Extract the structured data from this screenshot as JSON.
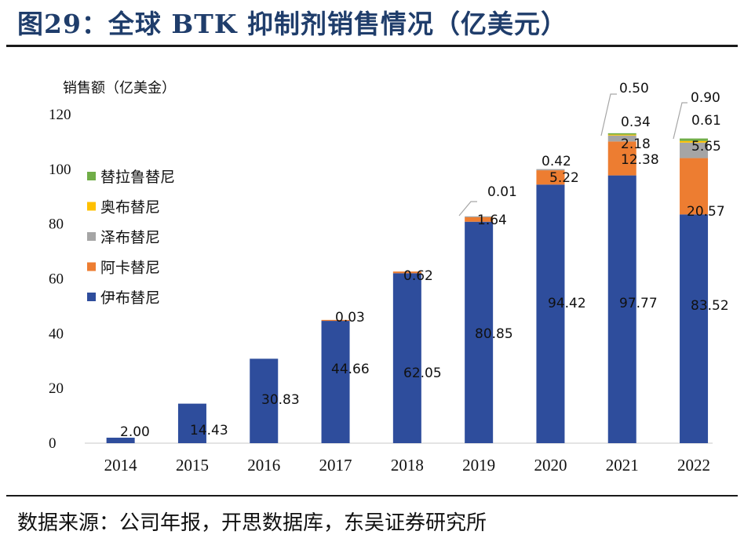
{
  "title": "图29：全球 BTK 抑制剂销售情况（亿美元）",
  "source": "数据来源：公司年报，开思数据库，东吴证券研究所",
  "chart_data": {
    "type": "bar",
    "stacked": true,
    "ylabel": "销售额（亿美金）",
    "xlabel": "",
    "ylim": [
      0,
      120
    ],
    "yticks": [
      0,
      20,
      40,
      60,
      80,
      100,
      120
    ],
    "categories": [
      "2014",
      "2015",
      "2016",
      "2017",
      "2018",
      "2019",
      "2020",
      "2021",
      "2022"
    ],
    "series": [
      {
        "name": "伊布替尼",
        "color": "#2e4d9c",
        "values": [
          2.0,
          14.43,
          30.83,
          44.66,
          62.05,
          80.85,
          94.42,
          97.77,
          83.52
        ],
        "labels": [
          "2.00",
          "14.43",
          "30.83",
          "44.66",
          "62.05",
          "80.85",
          "94.42",
          "97.77",
          "83.52"
        ]
      },
      {
        "name": "阿卡替尼",
        "color": "#ed7d31",
        "values": [
          0,
          0,
          0,
          0.03,
          0.62,
          1.64,
          5.22,
          12.38,
          20.57
        ],
        "labels": [
          "",
          "",
          "",
          "0.03",
          "0.62",
          "1.64",
          "5.22",
          "12.38",
          "20.57"
        ]
      },
      {
        "name": "泽布替尼",
        "color": "#a5a5a5",
        "values": [
          0,
          0,
          0,
          0,
          0,
          0.01,
          0.42,
          2.18,
          5.65
        ],
        "labels": [
          "",
          "",
          "",
          "",
          "",
          "0.01",
          "0.42",
          "2.18",
          "5.65"
        ]
      },
      {
        "name": "奥布替尼",
        "color": "#ffc000",
        "values": [
          0,
          0,
          0,
          0,
          0,
          0,
          0,
          0.34,
          0.61
        ],
        "labels": [
          "",
          "",
          "",
          "",
          "",
          "",
          "",
          "0.34",
          "0.61"
        ]
      },
      {
        "name": "替拉鲁替尼",
        "color": "#70ad47",
        "values": [
          0,
          0,
          0,
          0,
          0,
          0,
          0,
          0.5,
          0.9
        ],
        "labels": [
          "",
          "",
          "",
          "",
          "",
          "",
          "",
          "0.50",
          "0.90"
        ]
      }
    ],
    "legend_order": [
      "替拉鲁替尼",
      "奥布替尼",
      "泽布替尼",
      "阿卡替尼",
      "伊布替尼"
    ],
    "legend_position": "left"
  }
}
